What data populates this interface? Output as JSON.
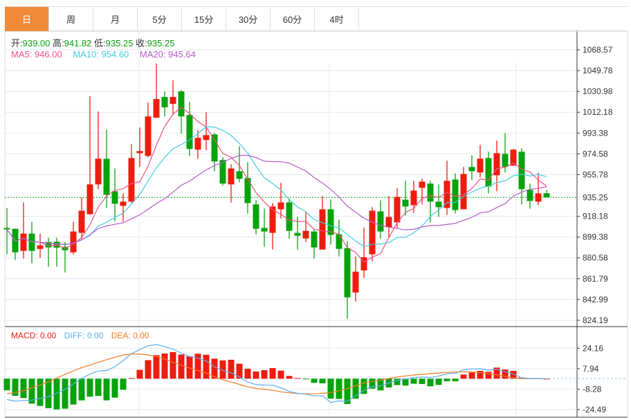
{
  "tabs": [
    "日",
    "周",
    "月",
    "5分",
    "15分",
    "30分",
    "60分",
    "4时"
  ],
  "active_tab": 0,
  "ohlc": {
    "open_label": "开:",
    "open": "939.00",
    "high_label": "高:",
    "high": "941.82",
    "low_label": "低:",
    "low": "935.25",
    "close_label": "收:",
    "close": "935.25"
  },
  "ma": {
    "ma5": "MA5: 946.00",
    "ma10": "MA10: 954.60",
    "ma20": "MA20: 945.64"
  },
  "macd_info": {
    "macd": "MACD: 0.00",
    "diff": "DIFF: 0.00",
    "dea": "DEA: 0.00"
  },
  "colors": {
    "up": "#ee1c0e",
    "down": "#08a30c",
    "ma5": "#ef5283",
    "ma10": "#3fcde0",
    "ma20": "#b65cc9",
    "diff": "#5aaeee",
    "dea": "#f57a22",
    "active_tab": "#f18b3a"
  },
  "chart_data": [
    {
      "type": "candlestick",
      "price_axis_labels": [
        "1068.57",
        "1049.78",
        "1030.98",
        "1012.18",
        "993.38",
        "974.58",
        "955.78",
        "918.18",
        "899.38",
        "880.58",
        "861.79",
        "842.99",
        "824.19"
      ],
      "ylim": [
        824.19,
        1068.57
      ],
      "current_price": "935.25",
      "ma_periods": [
        5,
        10,
        20
      ],
      "ohlc": [
        [
          907.6,
          925.7,
          883.8,
          906.3
        ],
        [
          906.9,
          906.9,
          878.7,
          885.6
        ],
        [
          886.9,
          930.7,
          880.0,
          902.5
        ],
        [
          902.5,
          913.2,
          875.6,
          886.9
        ],
        [
          888.7,
          902.5,
          880.6,
          891.9
        ],
        [
          895.0,
          898.8,
          872.5,
          890.0
        ],
        [
          895.2,
          898.8,
          872.5,
          889.8
        ],
        [
          890.6,
          895.0,
          867.4,
          887.5
        ],
        [
          885.6,
          913.2,
          883.8,
          904.4
        ],
        [
          903.2,
          935.1,
          897.5,
          923.2
        ],
        [
          920.1,
          1026.6,
          919.5,
          947.0
        ],
        [
          947.0,
          1012.8,
          942.6,
          970.2
        ],
        [
          970.2,
          996.5,
          925.7,
          937.6
        ],
        [
          940.8,
          961.4,
          913.8,
          929.5
        ],
        [
          927.6,
          938.9,
          913.2,
          931.4
        ],
        [
          931.4,
          983.4,
          930.1,
          970.8
        ],
        [
          975.2,
          998.4,
          962.7,
          977.1
        ],
        [
          972.7,
          1021.0,
          971.5,
          1008.4
        ],
        [
          1007.2,
          1056.1,
          1007.2,
          1024.1
        ],
        [
          1026.0,
          1031.0,
          1008.4,
          1016.6
        ],
        [
          1019.7,
          1041.0,
          1009.7,
          1026.0
        ],
        [
          1031.0,
          1032.2,
          992.8,
          1008.4
        ],
        [
          1009.7,
          1021.6,
          972.7,
          979.0
        ],
        [
          978.4,
          995.9,
          970.2,
          989.0
        ],
        [
          987.1,
          1012.2,
          977.7,
          991.5
        ],
        [
          992.1,
          993.4,
          958.9,
          967.7
        ],
        [
          969.0,
          971.5,
          945.8,
          947.7
        ],
        [
          947.0,
          965.2,
          930.7,
          961.4
        ],
        [
          958.9,
          981.5,
          948.9,
          952.0
        ],
        [
          952.7,
          967.1,
          920.7,
          930.1
        ],
        [
          928.9,
          932.6,
          901.9,
          906.9
        ],
        [
          907.6,
          925.1,
          890.6,
          904.4
        ],
        [
          903.2,
          930.1,
          888.1,
          927.0
        ],
        [
          924.5,
          948.3,
          916.3,
          930.7
        ],
        [
          930.7,
          934.5,
          898.1,
          905.0
        ],
        [
          903.2,
          917.6,
          888.1,
          900.6
        ],
        [
          898.1,
          922.0,
          895.0,
          905.0
        ],
        [
          904.4,
          906.3,
          880.0,
          890.0
        ],
        [
          888.1,
          936.4,
          888.1,
          924.5
        ],
        [
          924.5,
          933.2,
          892.5,
          901.3
        ],
        [
          901.9,
          915.1,
          881.9,
          888.7
        ],
        [
          889.4,
          895.6,
          825.5,
          844.9
        ],
        [
          849.3,
          881.9,
          841.1,
          868.1
        ],
        [
          869.3,
          908.2,
          862.4,
          881.2
        ],
        [
          883.8,
          926.4,
          877.5,
          923.2
        ],
        [
          922.6,
          932.6,
          898.1,
          904.4
        ],
        [
          908.2,
          936.4,
          898.8,
          917.6
        ],
        [
          912.6,
          943.9,
          907.6,
          935.7
        ],
        [
          933.2,
          950.2,
          918.8,
          927.0
        ],
        [
          928.2,
          950.2,
          921.3,
          941.4
        ],
        [
          943.9,
          952.0,
          928.9,
          949.5
        ],
        [
          947.7,
          950.2,
          912.6,
          931.4
        ],
        [
          931.4,
          947.0,
          917.6,
          926.4
        ],
        [
          925.7,
          968.3,
          919.5,
          950.2
        ],
        [
          951.4,
          957.0,
          920.7,
          923.8
        ],
        [
          924.5,
          962.7,
          924.5,
          956.4
        ],
        [
          962.7,
          973.3,
          950.8,
          958.9
        ],
        [
          957.7,
          982.7,
          953.3,
          970.2
        ],
        [
          970.8,
          976.5,
          938.9,
          945.1
        ],
        [
          955.2,
          986.5,
          940.8,
          975.2
        ],
        [
          974.6,
          993.4,
          957.7,
          962.7
        ],
        [
          963.9,
          979.0,
          963.9,
          978.4
        ],
        [
          976.5,
          979.6,
          928.9,
          942.6
        ],
        [
          942.0,
          947.7,
          925.1,
          932.0
        ],
        [
          931.4,
          957.7,
          928.2,
          938.9
        ],
        [
          939.0,
          941.82,
          935.25,
          935.25
        ]
      ]
    },
    {
      "type": "macd",
      "axis_labels": [
        "24.16",
        "7.94",
        "-8.28",
        "-24.49"
      ],
      "ylim": [
        -24.49,
        24.16
      ],
      "macd": [
        -9.2,
        -13.6,
        -15.4,
        -19.8,
        -21.6,
        -23.4,
        -24.4,
        -23.8,
        -20.5,
        -17.2,
        -14.3,
        -13.7,
        -17.2,
        -15.0,
        -8.8,
        0.5,
        7.0,
        14.7,
        18.7,
        20.0,
        21.1,
        19.2,
        17.8,
        19.8,
        19.0,
        15.9,
        14.5,
        15.0,
        11.9,
        7.9,
        5.7,
        6.8,
        8.4,
        6.4,
        2.2,
        0.5,
        -0.5,
        -3.3,
        -3.7,
        -15.8,
        -16.1,
        -20.1,
        -15.8,
        -12.1,
        -7.9,
        -9.3,
        -7.0,
        -5.1,
        -5.5,
        -4.0,
        -4.2,
        -6.0,
        -4.9,
        -2.0,
        -2.0,
        3.3,
        4.9,
        6.2,
        5.5,
        8.8,
        7.3,
        6.2,
        0.9,
        0.2,
        0.4,
        0.0
      ],
      "dea": [
        -12.0,
        -11.0,
        -9.6,
        -7.2,
        -5.0,
        -2.6,
        0.6,
        3.4,
        6.2,
        8.8,
        10.8,
        13.0,
        15.1,
        17.0,
        18.8,
        19.6,
        19.6,
        18.8,
        17.8,
        15.5,
        13.0,
        10.7,
        8.5,
        6.5,
        4.5,
        1.5,
        -0.8,
        -2.7,
        -4.5,
        -6.5,
        -7.6,
        -8.4,
        -9.3,
        -10.4,
        -11.2,
        -11.8,
        -12.0,
        -12.0,
        -11.6,
        -11.0,
        -9.6,
        -7.9,
        -5.6,
        -3.3,
        -2.2,
        -1.1,
        0.1,
        1.3,
        2.2,
        2.9,
        3.4,
        4.0,
        4.5,
        5.0,
        5.3,
        5.5,
        5.3,
        4.8,
        4.0,
        3.1,
        2.0,
        0.7,
        0.1,
        0.0,
        0.0,
        0.0
      ]
    }
  ]
}
